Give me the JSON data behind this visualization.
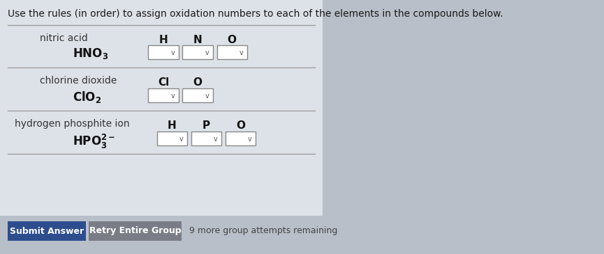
{
  "bg_color": "#b8bfc8",
  "panel_color": "#dde2e8",
  "title": "Use the rules (in order) to assign oxidation numbers to each of the elements in the compounds below.",
  "title_fontsize": 10.0,
  "title_color": "#1a1a1a",
  "rows": [
    {
      "label": "nitric acid",
      "formula": "HNO\\u2083",
      "formula_latex": "HNO$_3$",
      "elements": [
        "H",
        "N",
        "O"
      ],
      "n_dropdowns": 3
    },
    {
      "label": "chlorine dioxide",
      "formula": "ClO\\u2082",
      "formula_latex": "ClO$_2$",
      "elements": [
        "Cl",
        "O"
      ],
      "n_dropdowns": 2
    },
    {
      "label": "hydrogen phosphite ion",
      "formula": "HPO\\u2083\\u00b2\\u207b",
      "formula_latex": "HPO$_3^{2-}$",
      "elements": [
        "H",
        "P",
        "O"
      ],
      "n_dropdowns": 3
    }
  ],
  "submit_btn": {
    "label": "Submit Answer",
    "color": "#2d4d8e",
    "text_color": "#ffffff"
  },
  "retry_btn": {
    "label": "Retry Entire Group",
    "color": "#7a7d85",
    "text_color": "#ffffff"
  },
  "attempts_text": "9 more group attempts remaining",
  "dropdown_bg": "#ffffff",
  "dropdown_border": "#888888",
  "line_color": "#999999",
  "label_color": "#333333",
  "formula_color": "#111111",
  "element_color": "#111111"
}
